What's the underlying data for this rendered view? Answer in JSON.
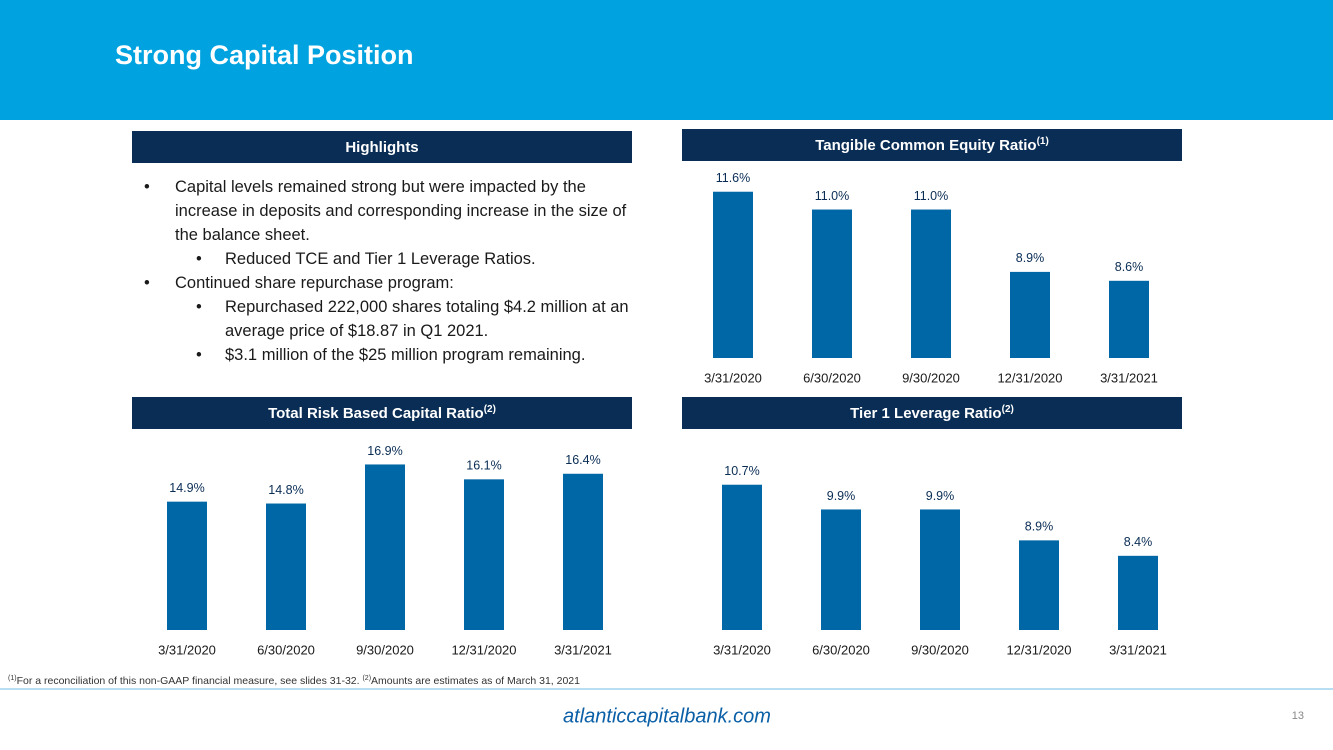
{
  "header": {
    "title": "Strong Capital Position"
  },
  "highlights": {
    "title": "Highlights",
    "items": [
      {
        "text": "Capital levels remained strong but were impacted by the increase in deposits and corresponding increase in the size of the balance sheet.",
        "level": 1
      },
      {
        "text": "Reduced TCE and Tier 1 Leverage Ratios.",
        "level": 2
      },
      {
        "text": "Continued share repurchase program:",
        "level": 1
      },
      {
        "text": "Repurchased 222,000 shares totaling $4.2 million at an average price of $18.87 in Q1 2021.",
        "level": 2
      },
      {
        "text": "$3.1 million of the $25 million program remaining.",
        "level": 2
      }
    ]
  },
  "chart_data": [
    {
      "type": "bar",
      "title": "Tangible Common Equity Ratio",
      "title_note": "(1)",
      "categories": [
        "3/31/2020",
        "6/30/2020",
        "9/30/2020",
        "12/31/2020",
        "3/31/2021"
      ],
      "values": [
        11.6,
        11.0,
        11.0,
        8.9,
        8.6
      ],
      "value_labels": [
        "11.6%",
        "11.0%",
        "11.0%",
        "8.9%",
        "8.6%"
      ],
      "color": "#0067a6",
      "ylim": [
        6,
        12.5
      ]
    },
    {
      "type": "bar",
      "title": "Total Risk Based Capital Ratio",
      "title_note": "(2)",
      "categories": [
        "3/31/2020",
        "6/30/2020",
        "9/30/2020",
        "12/31/2020",
        "3/31/2021"
      ],
      "values": [
        14.9,
        14.8,
        16.9,
        16.1,
        16.4
      ],
      "value_labels": [
        "14.9%",
        "14.8%",
        "16.9%",
        "16.1%",
        "16.4%"
      ],
      "color": "#0067a6",
      "ylim": [
        8,
        18
      ]
    },
    {
      "type": "bar",
      "title": "Tier 1 Leverage Ratio",
      "title_note": "(2)",
      "categories": [
        "3/31/2020",
        "6/30/2020",
        "9/30/2020",
        "12/31/2020",
        "3/31/2021"
      ],
      "values": [
        10.7,
        9.9,
        9.9,
        8.9,
        8.4
      ],
      "value_labels": [
        "10.7%",
        "9.9%",
        "9.9%",
        "8.9%",
        "8.4%"
      ],
      "color": "#0067a6",
      "ylim": [
        6,
        11.5
      ]
    }
  ],
  "footnote": {
    "note1_marker": "(1)",
    "note1": "For a reconciliation of this non-GAAP financial measure, see slides 31-32. ",
    "note2_marker": "(2)",
    "note2": "Amounts are estimates as of March 31, 2021"
  },
  "footer": {
    "url": "atlanticcapitalbank.com",
    "page": "13"
  }
}
